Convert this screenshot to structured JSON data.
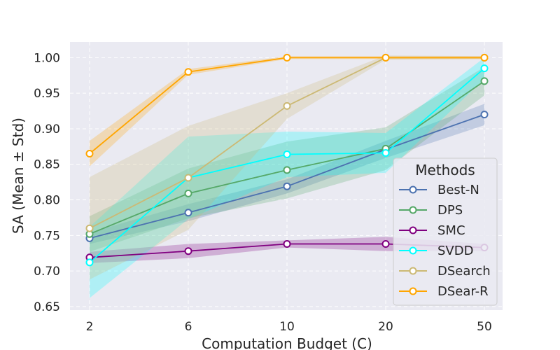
{
  "chart_data": {
    "type": "line",
    "title": "",
    "xlabel": "Computation Budget (C)",
    "ylabel": "SA (Mean ± Std)",
    "categories": [
      "2",
      "6",
      "10",
      "20",
      "50"
    ],
    "ylim": [
      0.645,
      1.022
    ],
    "yticks": [
      "0.65",
      "0.70",
      "0.75",
      "0.80",
      "0.85",
      "0.90",
      "0.95",
      "1.00"
    ],
    "grid": true,
    "legend": {
      "title": "Methods",
      "position": "right"
    },
    "series": [
      {
        "name": "Best-N",
        "color": "#4c72b0",
        "values": [
          0.746,
          0.782,
          0.819,
          0.871,
          0.92
        ],
        "std": [
          0.008,
          0.012,
          0.01,
          0.012,
          0.015
        ]
      },
      {
        "name": "DPS",
        "color": "#55a868",
        "values": [
          0.752,
          0.809,
          0.842,
          0.872,
          0.967
        ],
        "std": [
          0.025,
          0.035,
          0.04,
          0.03,
          0.02
        ]
      },
      {
        "name": "SMC",
        "color": "#800080",
        "values": [
          0.719,
          0.728,
          0.738,
          0.738,
          0.733
        ],
        "std": [
          0.008,
          0.01,
          0.005,
          0.01,
          0.005
        ]
      },
      {
        "name": "SVDD",
        "color": "#00ffff",
        "values": [
          0.712,
          0.831,
          0.864,
          0.866,
          0.985
        ],
        "std": [
          0.05,
          0.058,
          0.032,
          0.028,
          0.015
        ]
      },
      {
        "name": "DSearch",
        "color": "#ccb974",
        "values": [
          0.76,
          0.831,
          0.932,
          1.0,
          1.0
        ],
        "std": [
          0.072,
          0.073,
          0.018,
          0.003,
          0.002
        ]
      },
      {
        "name": "DSear-R",
        "color": "#ffa500",
        "values": [
          0.865,
          0.98,
          1.0,
          1.0,
          1.0
        ],
        "std": [
          0.018,
          0.004,
          0.002,
          0.002,
          0.002
        ]
      }
    ]
  }
}
